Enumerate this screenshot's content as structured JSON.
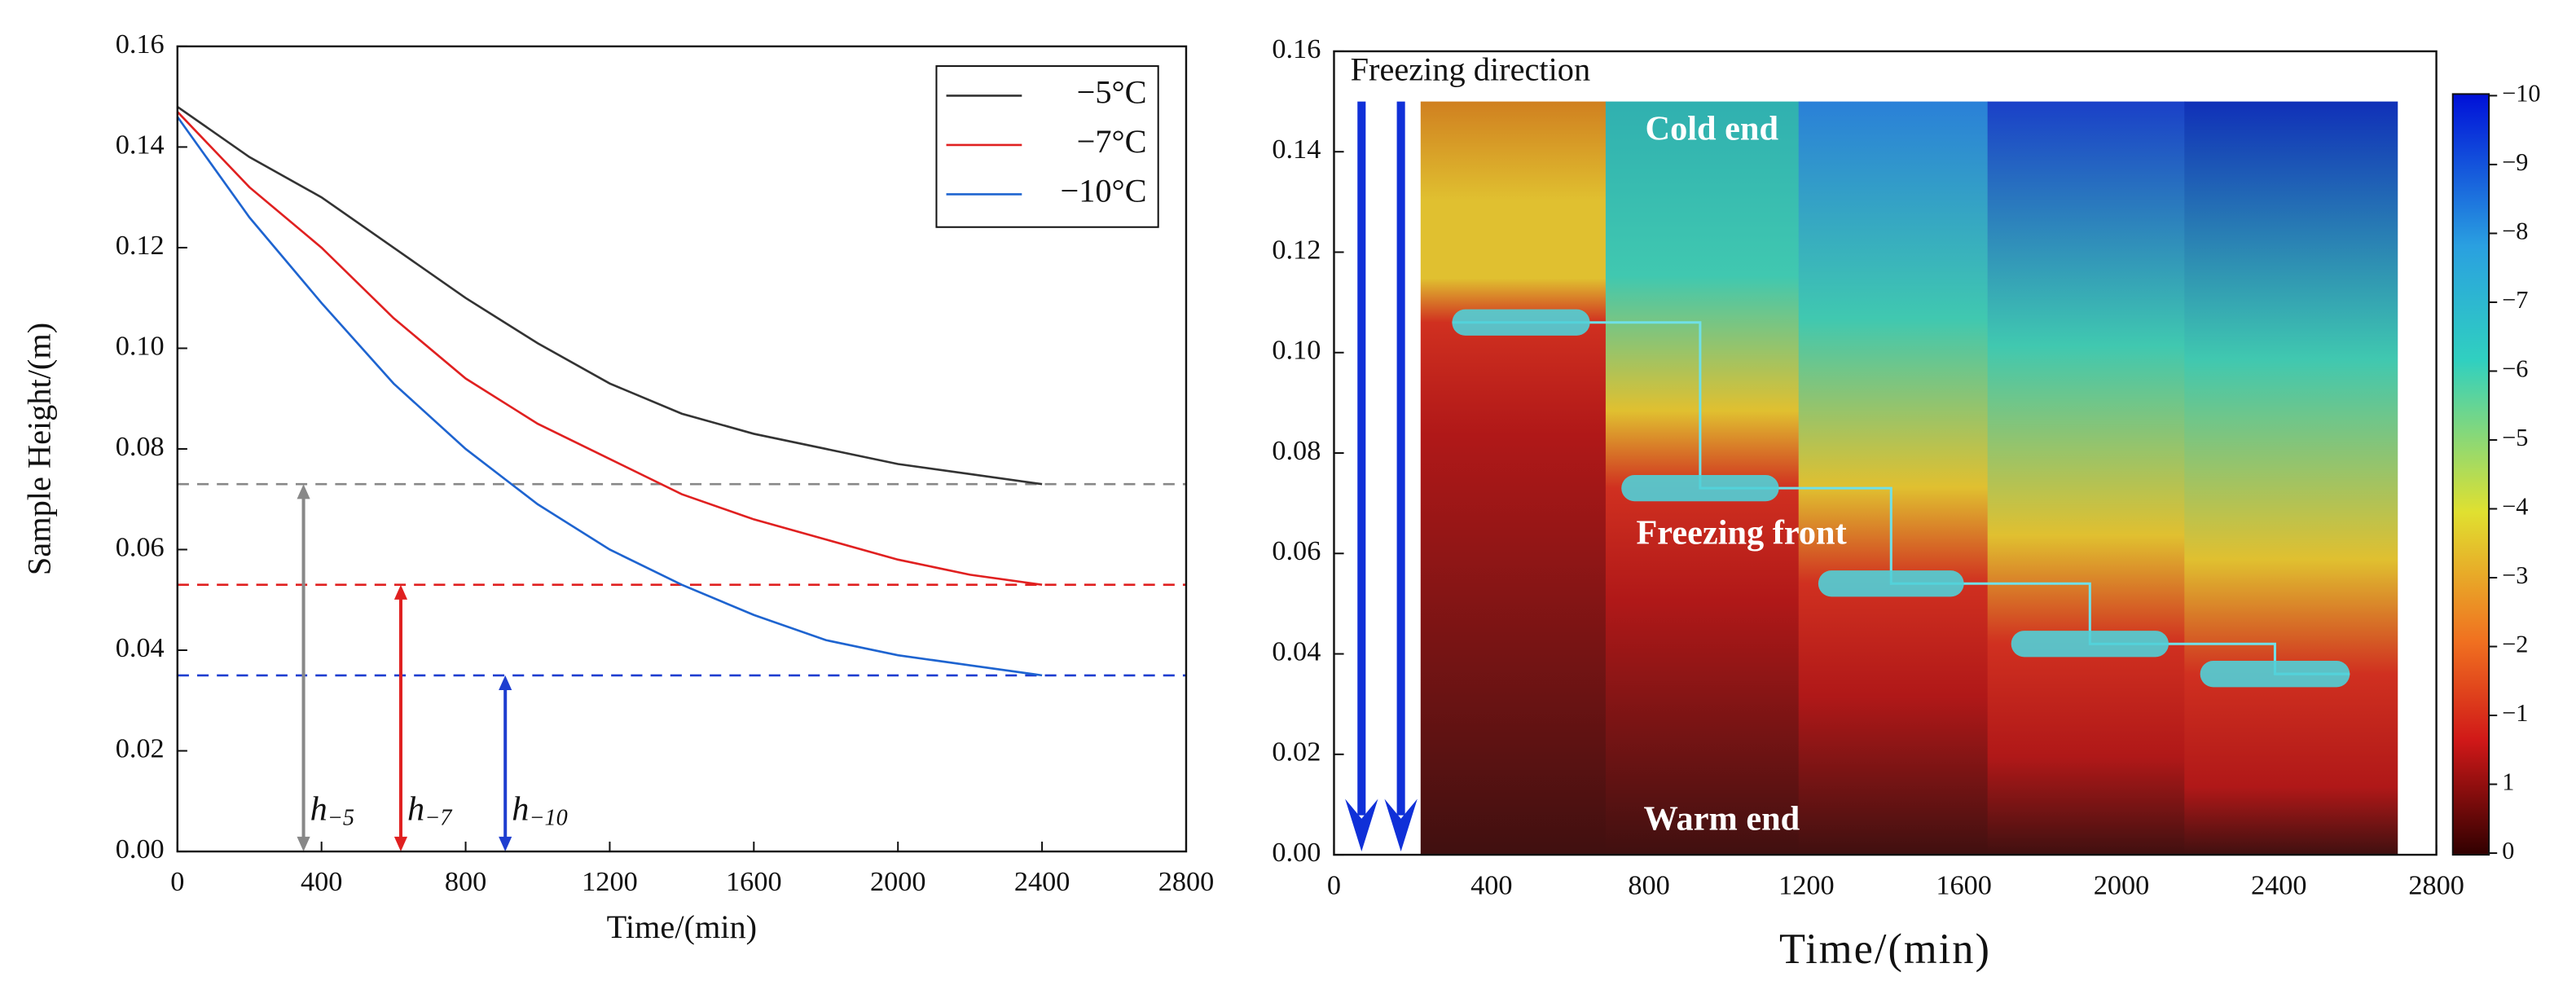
{
  "chart_data": [
    {
      "type": "line",
      "xlabel": "Time/(min)",
      "ylabel": "Sample Height/(m)",
      "xlim": [
        0,
        2800
      ],
      "xticks": [
        0,
        400,
        800,
        1200,
        1600,
        2000,
        2400,
        2800
      ],
      "ylim": [
        0,
        0.16
      ],
      "yticks": [
        {
          "value": 0,
          "label": "0.00"
        },
        {
          "value": 0.02,
          "label": "0.02"
        },
        {
          "value": 0.04,
          "label": "0.04"
        },
        {
          "value": 0.06,
          "label": "0.06"
        },
        {
          "value": 0.08,
          "label": "0.08"
        },
        {
          "value": 0.1,
          "label": "0.10"
        },
        {
          "value": 0.12,
          "label": "0.12"
        },
        {
          "value": 0.14,
          "label": "0.14"
        },
        {
          "value": 0.16,
          "label": "0.16"
        }
      ],
      "x": [
        0,
        200,
        400,
        600,
        800,
        1000,
        1200,
        1400,
        1600,
        1800,
        2000,
        2200,
        2400
      ],
      "series": [
        {
          "name": "−5°C",
          "color": "#333333",
          "values": [
            0.148,
            0.138,
            0.13,
            0.12,
            0.11,
            0.101,
            0.093,
            0.087,
            0.083,
            0.08,
            0.077,
            0.075,
            0.073
          ]
        },
        {
          "name": "−7°C",
          "color": "#e02020",
          "values": [
            0.147,
            0.132,
            0.12,
            0.106,
            0.094,
            0.085,
            0.078,
            0.071,
            0.066,
            0.062,
            0.058,
            0.055,
            0.053
          ]
        },
        {
          "name": "−10°C",
          "color": "#1e64d0",
          "values": [
            0.146,
            0.126,
            0.109,
            0.093,
            0.08,
            0.069,
            0.06,
            0.053,
            0.047,
            0.042,
            0.039,
            0.037,
            0.035
          ]
        }
      ],
      "reference_lines": [
        {
          "value": 0.073,
          "color": "#888888"
        },
        {
          "value": 0.053,
          "color": "#e02020"
        },
        {
          "value": 0.035,
          "color": "#1e3ed0"
        }
      ],
      "arrows": [
        {
          "x": 350,
          "value": 0.073,
          "color": "#888888",
          "label": "h",
          "subscript": "−5"
        },
        {
          "x": 620,
          "value": 0.053,
          "color": "#e02020",
          "label": "h",
          "subscript": "−7"
        },
        {
          "x": 910,
          "value": 0.035,
          "color": "#1e3ed0",
          "label": "h",
          "subscript": "−10"
        }
      ],
      "legend": "upper right"
    },
    {
      "type": "heatmap",
      "xlabel": "Time/(min)",
      "xlim": [
        0,
        2800
      ],
      "xticks": [
        0,
        400,
        800,
        1200,
        1600,
        2000,
        2400,
        2800
      ],
      "ylim": [
        0,
        0.16
      ],
      "yticks": [
        {
          "value": 0,
          "label": "0.00"
        },
        {
          "value": 0.02,
          "label": "0.02"
        },
        {
          "value": 0.04,
          "label": "0.04"
        },
        {
          "value": 0.06,
          "label": "0.06"
        },
        {
          "value": 0.08,
          "label": "0.08"
        },
        {
          "value": 0.1,
          "label": "0.10"
        },
        {
          "value": 0.12,
          "label": "0.12"
        },
        {
          "value": 0.14,
          "label": "0.14"
        },
        {
          "value": 0.16,
          "label": "0.16"
        }
      ],
      "field": {
        "x": [
          220,
          2700
        ],
        "y": [
          0,
          0.15
        ]
      },
      "direction_arrows_x": [
        70,
        170
      ],
      "freezing_front": [
        {
          "x": [
            300,
            650
          ],
          "y": 0.106
        },
        {
          "x": [
            730,
            1130
          ],
          "y": 0.073
        },
        {
          "x": [
            1230,
            1600
          ],
          "y": 0.054
        },
        {
          "x": [
            1720,
            2120
          ],
          "y": 0.042
        },
        {
          "x": [
            2200,
            2580
          ],
          "y": 0.036
        }
      ],
      "annotations": [
        "Freezing direction",
        "Cold end",
        "Freezing front",
        "Warm end"
      ],
      "colorbar_labels": [
        "−10",
        "−9",
        "−8",
        "−7",
        "−6",
        "−5",
        "−4",
        "−3",
        "−2",
        "−1",
        "1",
        "0"
      ]
    }
  ]
}
